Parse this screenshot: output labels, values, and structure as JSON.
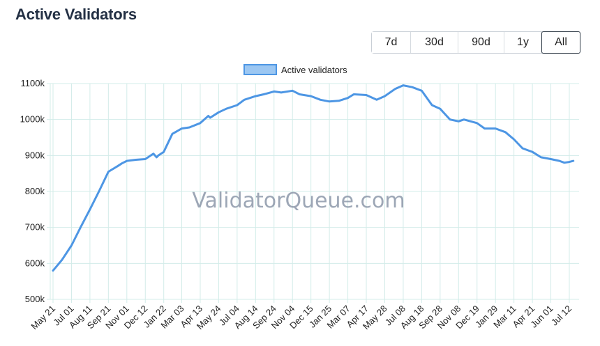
{
  "page": {
    "title": "Active Validators"
  },
  "range_buttons": [
    {
      "label": "7d",
      "active": false
    },
    {
      "label": "30d",
      "active": false
    },
    {
      "label": "90d",
      "active": false
    },
    {
      "label": "1y",
      "active": false
    },
    {
      "label": "All",
      "active": true
    }
  ],
  "watermark": "ValidatorQueue.com",
  "colors": {
    "line": "#4d96e4",
    "legend_fill": "#9cc7f2",
    "grid": "#d3ece9"
  },
  "chart_data": {
    "type": "line",
    "title": "",
    "xlabel": "",
    "ylabel": "",
    "ylim": [
      500000,
      1100000
    ],
    "y_ticks": [
      "500k",
      "600k",
      "700k",
      "800k",
      "900k",
      "1000k",
      "1100k"
    ],
    "x_ticks": [
      "May 21",
      "Jul 01",
      "Aug 11",
      "Sep 21",
      "Nov 01",
      "Dec 12",
      "Jan 22",
      "Mar 03",
      "Apr 13",
      "May 24",
      "Jul 04",
      "Aug 14",
      "Sep 24",
      "Nov 04",
      "Dec 15",
      "Jan 25",
      "Mar 07",
      "Apr 17",
      "May 28",
      "Jul 08",
      "Aug 18",
      "Sep 28",
      "Nov 08",
      "Dec 19",
      "Jan 29",
      "Mar 11",
      "Apr 21",
      "Jun 01",
      "Jul 12"
    ],
    "legend": {
      "position": "top-center"
    },
    "series": [
      {
        "name": "Active validators",
        "x": [
          "May 21",
          "Jun 10",
          "Jul 01",
          "Jul 21",
          "Aug 11",
          "Aug 31",
          "Sep 21",
          "Oct 11",
          "Oct 21",
          "Nov 01",
          "Nov 21",
          "Dec 12",
          "Dec 30",
          "Jan 06",
          "Jan 10",
          "Jan 22",
          "Feb 10",
          "Mar 03",
          "Mar 20",
          "Apr 13",
          "May 01",
          "May 05",
          "May 24",
          "Jun 10",
          "Jul 04",
          "Jul 20",
          "Aug 14",
          "Sep 01",
          "Sep 24",
          "Oct 10",
          "Nov 04",
          "Nov 20",
          "Dec 15",
          "Jan 05",
          "Jan 25",
          "Feb 15",
          "Mar 07",
          "Mar 20",
          "Apr 17",
          "May 10",
          "May 28",
          "Jun 20",
          "Jul 08",
          "Jul 28",
          "Aug 18",
          "Sep 10",
          "Sep 28",
          "Oct 20",
          "Nov 08",
          "Nov 20",
          "Dec 19",
          "Jan 05",
          "Jan 29",
          "Feb 20",
          "Mar 11",
          "Mar 30",
          "Apr 21",
          "May 10",
          "Jun 01",
          "Jun 20",
          "Jul 01",
          "Jul 12",
          "Jul 21"
        ],
        "values": [
          580000,
          610000,
          650000,
          700000,
          750000,
          800000,
          855000,
          870000,
          878000,
          885000,
          888000,
          890000,
          905000,
          895000,
          900000,
          910000,
          960000,
          975000,
          978000,
          990000,
          1010000,
          1005000,
          1020000,
          1030000,
          1040000,
          1055000,
          1065000,
          1070000,
          1078000,
          1075000,
          1080000,
          1070000,
          1065000,
          1055000,
          1050000,
          1052000,
          1060000,
          1070000,
          1068000,
          1055000,
          1065000,
          1085000,
          1095000,
          1090000,
          1080000,
          1040000,
          1030000,
          1000000,
          995000,
          1000000,
          990000,
          975000,
          975000,
          965000,
          945000,
          920000,
          910000,
          895000,
          890000,
          885000,
          880000,
          882000,
          885000
        ]
      }
    ]
  }
}
